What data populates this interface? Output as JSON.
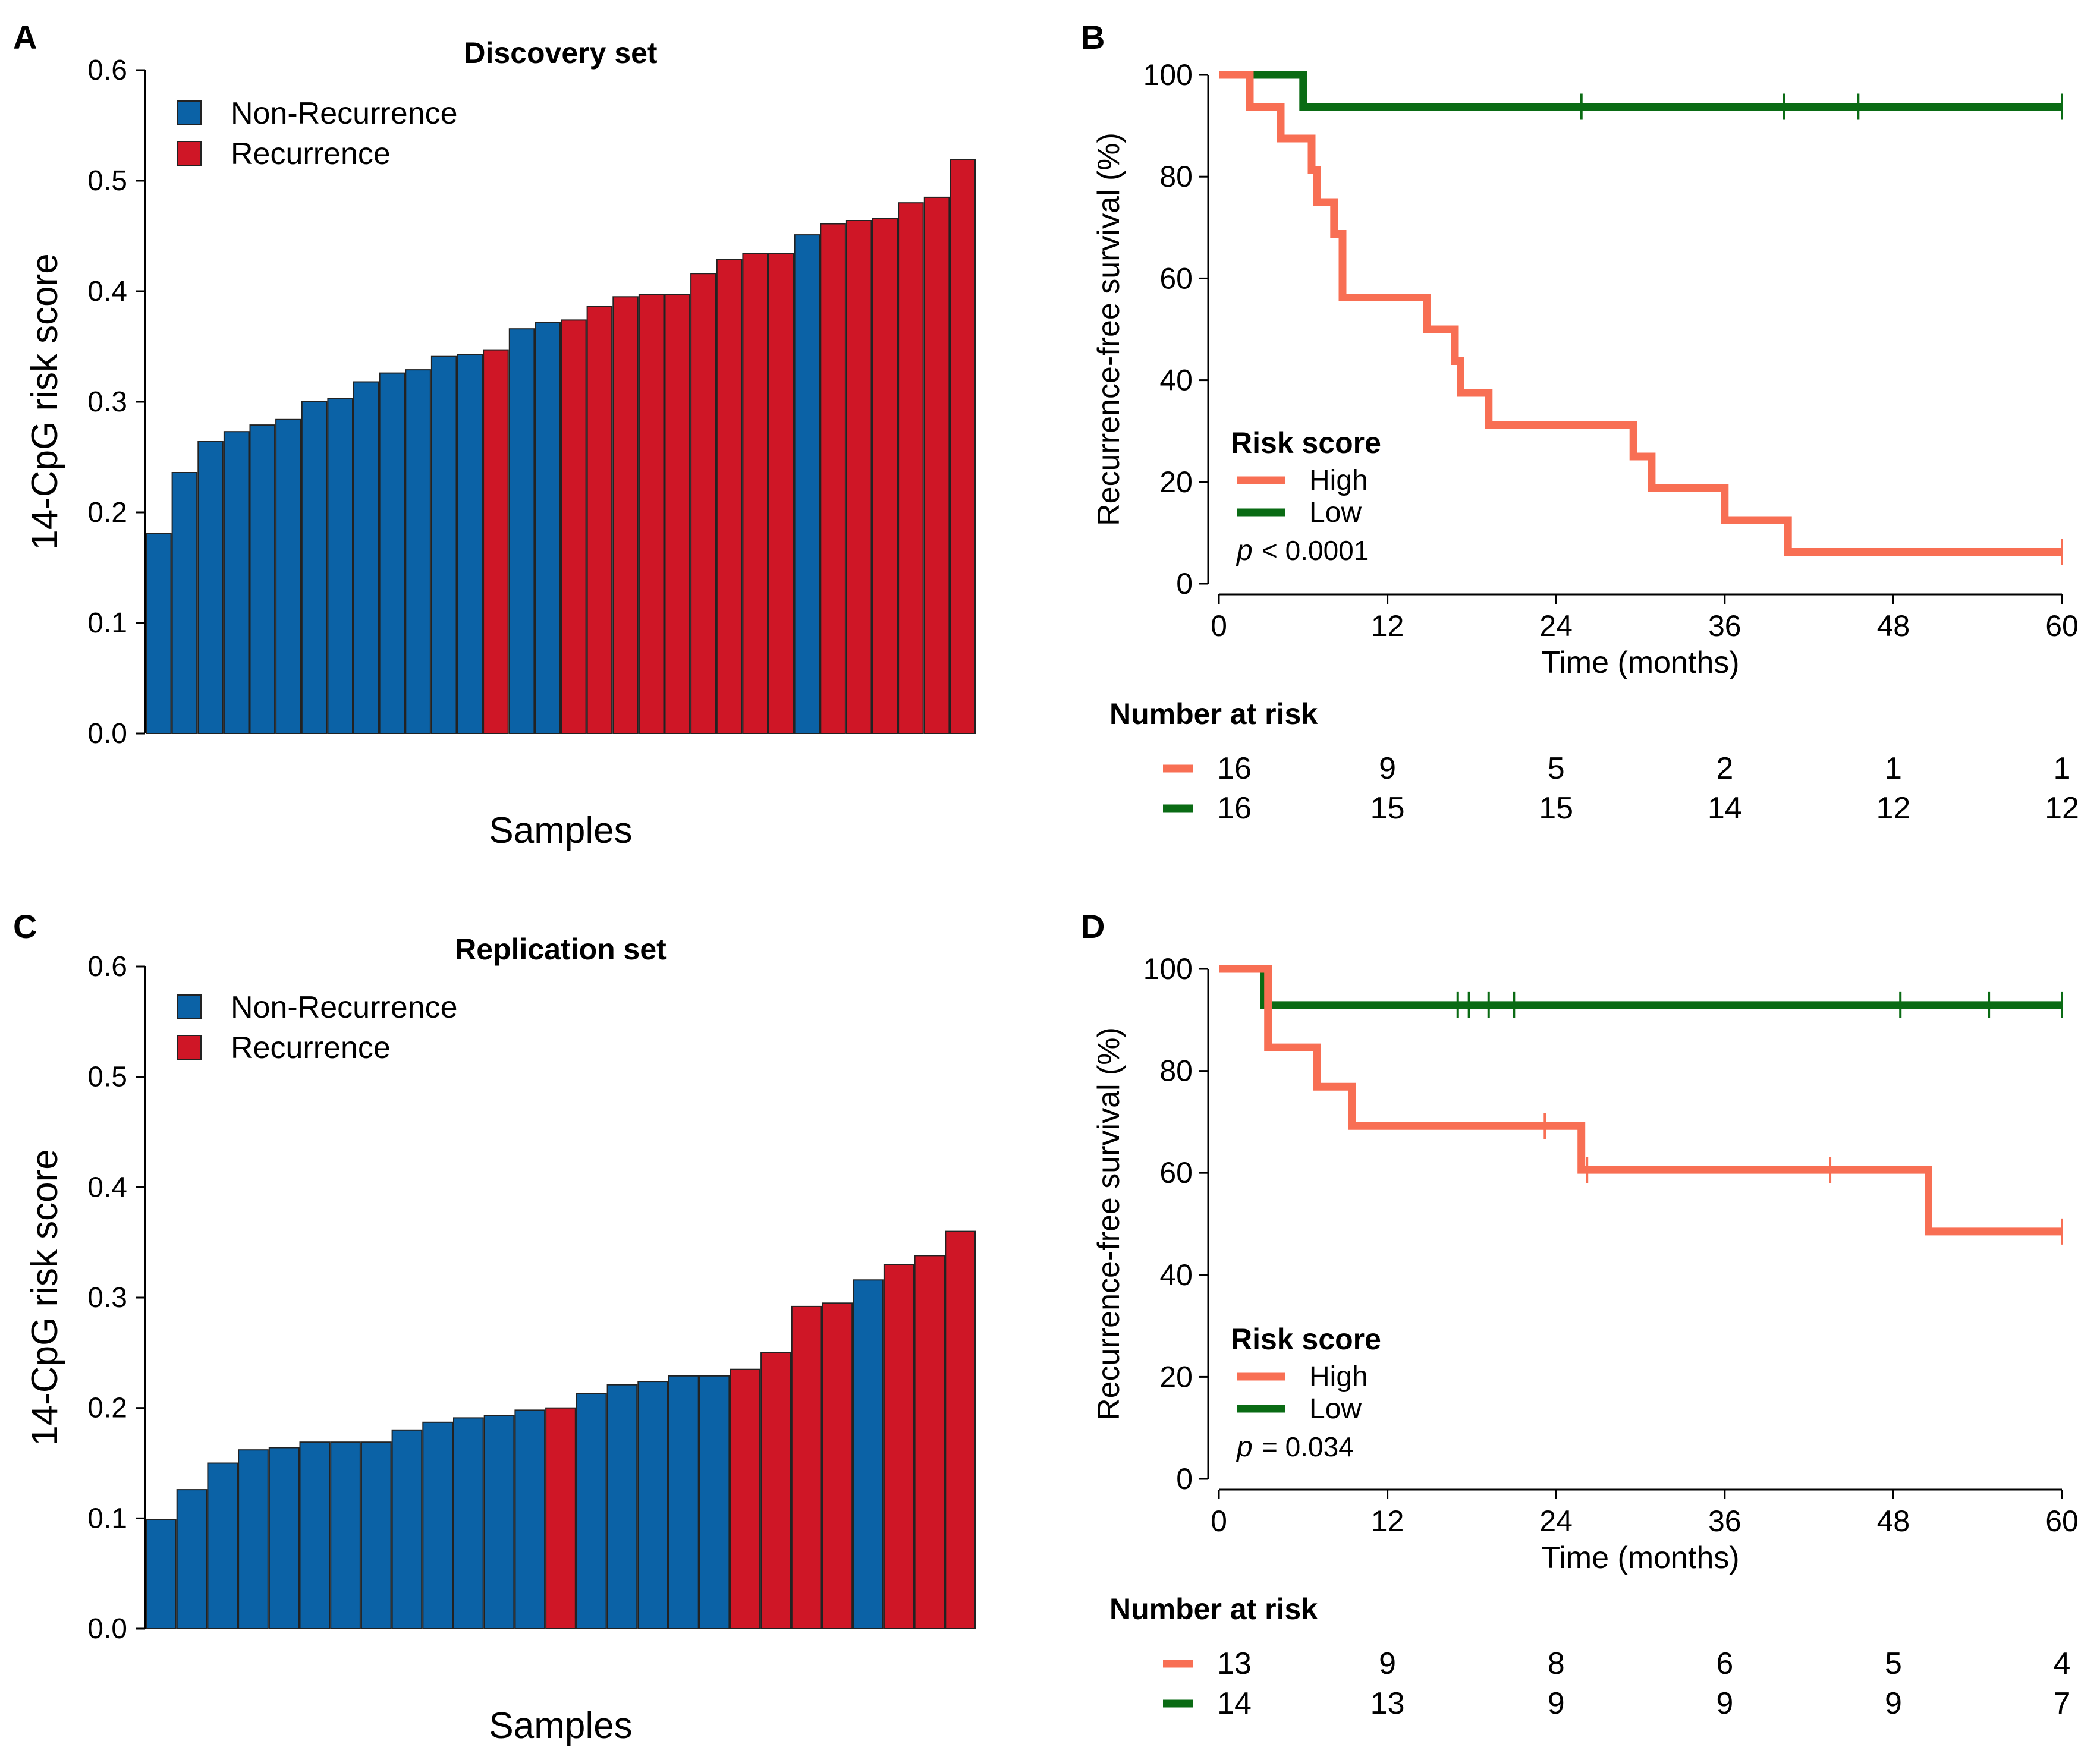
{
  "colors": {
    "non_recurrence": "#0b62a6",
    "recurrence": "#cf1626",
    "high": "#f86f54",
    "low": "#0a6b14",
    "axis": "#000000",
    "bar_border": "#222222"
  },
  "chart_data": [
    {
      "panel": "A",
      "type": "bar",
      "title": "Discovery set",
      "xlabel": "Samples",
      "ylabel": "14-CpG risk score",
      "ylim": [
        0,
        0.6
      ],
      "yticks": [
        "0.0",
        "0.1",
        "0.2",
        "0.3",
        "0.4",
        "0.5",
        "0.6"
      ],
      "legend": [
        {
          "label": "Non-Recurrence",
          "key": "non_recurrence"
        },
        {
          "label": "Recurrence",
          "key": "recurrence"
        }
      ],
      "values": [
        0.181,
        0.236,
        0.264,
        0.273,
        0.279,
        0.284,
        0.3,
        0.303,
        0.318,
        0.326,
        0.329,
        0.341,
        0.343,
        0.347,
        0.366,
        0.372,
        0.374,
        0.386,
        0.395,
        0.397,
        0.397,
        0.416,
        0.429,
        0.434,
        0.434,
        0.451,
        0.461,
        0.464,
        0.466,
        0.48,
        0.485,
        0.519
      ],
      "groups": [
        "N",
        "N",
        "N",
        "N",
        "N",
        "N",
        "N",
        "N",
        "N",
        "N",
        "N",
        "N",
        "N",
        "R",
        "N",
        "N",
        "R",
        "R",
        "R",
        "R",
        "R",
        "R",
        "R",
        "R",
        "R",
        "N",
        "R",
        "R",
        "R",
        "R",
        "R",
        "R"
      ]
    },
    {
      "panel": "B",
      "type": "line",
      "subtype": "kaplan-meier",
      "xlabel": "Time (months)",
      "ylabel": "Recurrence-free survival (%)",
      "xlim": [
        0,
        60
      ],
      "ylim": [
        0,
        100
      ],
      "xticks": [
        "0",
        "12",
        "24",
        "36",
        "48",
        "60"
      ],
      "yticks": [
        "0",
        "20",
        "40",
        "60",
        "80",
        "100"
      ],
      "legend_title": "Risk score",
      "p_label": "p",
      "p_value": "< 0.0001",
      "series": [
        {
          "name": "High",
          "color_key": "high",
          "steps": [
            [
              0,
              100
            ],
            [
              2.2,
              93.75
            ],
            [
              4.4,
              87.5
            ],
            [
              6.6,
              81.25
            ],
            [
              7.0,
              75
            ],
            [
              8.2,
              68.75
            ],
            [
              8.8,
              56.25
            ],
            [
              14.8,
              50
            ],
            [
              16.8,
              43.75
            ],
            [
              17.2,
              37.5
            ],
            [
              19.2,
              31.25
            ],
            [
              29.5,
              25
            ],
            [
              30.8,
              18.75
            ],
            [
              36.0,
              12.5
            ],
            [
              40.5,
              6.25
            ],
            [
              60,
              6.25
            ]
          ],
          "censors": [
            [
              60,
              6.25
            ]
          ]
        },
        {
          "name": "Low",
          "color_key": "low",
          "steps": [
            [
              0,
              100
            ],
            [
              6.0,
              93.75
            ],
            [
              60,
              93.75
            ]
          ],
          "censors": [
            [
              25.8,
              93.75
            ],
            [
              40.2,
              93.75
            ],
            [
              45.5,
              93.75
            ],
            [
              60,
              93.75
            ]
          ]
        }
      ],
      "risk_table": {
        "title": "Number at risk",
        "times": [
          0,
          12,
          24,
          36,
          48,
          60
        ],
        "rows": [
          {
            "name": "High",
            "color_key": "high",
            "values": [
              "16",
              "9",
              "5",
              "2",
              "1",
              "1"
            ]
          },
          {
            "name": "Low",
            "color_key": "low",
            "values": [
              "16",
              "15",
              "15",
              "14",
              "12",
              "12"
            ]
          }
        ]
      }
    },
    {
      "panel": "C",
      "type": "bar",
      "title": "Replication set",
      "xlabel": "Samples",
      "ylabel": "14-CpG risk score",
      "ylim": [
        0,
        0.6
      ],
      "yticks": [
        "0.0",
        "0.1",
        "0.2",
        "0.3",
        "0.4",
        "0.5",
        "0.6"
      ],
      "legend": [
        {
          "label": "Non-Recurrence",
          "key": "non_recurrence"
        },
        {
          "label": "Recurrence",
          "key": "recurrence"
        }
      ],
      "values": [
        0.099,
        0.126,
        0.15,
        0.162,
        0.164,
        0.169,
        0.169,
        0.169,
        0.18,
        0.187,
        0.191,
        0.193,
        0.198,
        0.2,
        0.213,
        0.221,
        0.224,
        0.229,
        0.229,
        0.235,
        0.25,
        0.292,
        0.295,
        0.316,
        0.33,
        0.338,
        0.36
      ],
      "groups": [
        "N",
        "N",
        "N",
        "N",
        "N",
        "N",
        "N",
        "N",
        "N",
        "N",
        "N",
        "N",
        "N",
        "R",
        "N",
        "N",
        "N",
        "N",
        "N",
        "R",
        "R",
        "R",
        "R",
        "N",
        "R",
        "R",
        "R"
      ]
    },
    {
      "panel": "D",
      "type": "line",
      "subtype": "kaplan-meier",
      "xlabel": "Time (months)",
      "ylabel": "Recurrence-free survival (%)",
      "xlim": [
        0,
        60
      ],
      "ylim": [
        0,
        100
      ],
      "xticks": [
        "0",
        "12",
        "24",
        "36",
        "48",
        "60"
      ],
      "yticks": [
        "0",
        "20",
        "40",
        "60",
        "80",
        "100"
      ],
      "legend_title": "Risk score",
      "p_label": "p",
      "p_value": "= 0.034",
      "series": [
        {
          "name": "High",
          "color_key": "high",
          "steps": [
            [
              0,
              100
            ],
            [
              3.5,
              84.6
            ],
            [
              7.0,
              76.9
            ],
            [
              9.5,
              69.2
            ],
            [
              25.8,
              60.6
            ],
            [
              50.5,
              48.5
            ],
            [
              60,
              48.5
            ]
          ],
          "censors": [
            [
              23.2,
              69.2
            ],
            [
              26.2,
              60.6
            ],
            [
              43.5,
              60.6
            ],
            [
              60,
              48.5
            ]
          ]
        },
        {
          "name": "Low",
          "color_key": "low",
          "steps": [
            [
              0,
              100
            ],
            [
              3.2,
              92.9
            ],
            [
              60,
              92.9
            ]
          ],
          "censors": [
            [
              17.0,
              92.9
            ],
            [
              17.8,
              92.9
            ],
            [
              19.2,
              92.9
            ],
            [
              21.0,
              92.9
            ],
            [
              48.5,
              92.9
            ],
            [
              54.8,
              92.9
            ],
            [
              60,
              92.9
            ]
          ]
        }
      ],
      "risk_table": {
        "title": "Number at risk",
        "times": [
          0,
          12,
          24,
          36,
          48,
          60
        ],
        "rows": [
          {
            "name": "High",
            "color_key": "high",
            "values": [
              "13",
              "9",
              "8",
              "6",
              "5",
              "4"
            ]
          },
          {
            "name": "Low",
            "color_key": "low",
            "values": [
              "14",
              "13",
              "9",
              "9",
              "9",
              "7"
            ]
          }
        ]
      }
    }
  ]
}
